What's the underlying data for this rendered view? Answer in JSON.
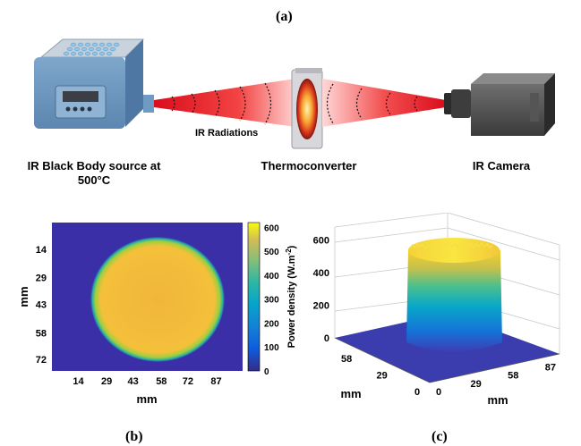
{
  "panel_a": {
    "label": "(a)",
    "source_caption_line1": "IR Black Body source at",
    "source_caption_line2": "500°C",
    "beam_label": "IR Radiations",
    "converter_caption": "Thermoconverter",
    "camera_caption": "IR Camera",
    "source_display_color": "#3b3f45",
    "beam_color": "#e8101a"
  },
  "panel_b": {
    "label": "(b)",
    "xlabel": "mm",
    "ylabel": "mm",
    "x_ticks": [
      "14",
      "29",
      "43",
      "58",
      "72",
      "87"
    ],
    "y_ticks": [
      "14",
      "29",
      "43",
      "58",
      "72"
    ],
    "colorbar_label": "Power density (W.m",
    "colorbar_exp": "-2",
    "colorbar_label_end": ")",
    "colorbar_ticks": [
      "0",
      "100",
      "200",
      "300",
      "400",
      "500",
      "600"
    ],
    "background_color": "#3b2fa8",
    "disk_color": "#f2b93b"
  },
  "panel_c": {
    "label": "(c)",
    "z_ticks": [
      "0",
      "200",
      "400",
      "600"
    ],
    "left_axis_ticks": [
      "0",
      "29",
      "58"
    ],
    "right_axis_ticks": [
      "0",
      "29",
      "58",
      "87"
    ],
    "left_axis_label": "mm",
    "right_axis_label": "mm"
  },
  "chart_data": [
    {
      "type": "heatmap",
      "title": "",
      "xlabel": "mm",
      "ylabel": "mm",
      "x_ticks": [
        14,
        29,
        43,
        58,
        72,
        87
      ],
      "y_ticks": [
        14,
        29,
        43,
        58,
        72
      ],
      "colorbar": {
        "label": "Power density (W.m-2)",
        "range": [
          0,
          620
        ],
        "ticks": [
          0,
          100,
          200,
          300,
          400,
          500,
          600
        ],
        "colormap": "parula"
      },
      "description_values": {
        "disk_level": 520,
        "background_level": 0
      }
    },
    {
      "type": "surface",
      "zlabel": "",
      "z_range": [
        0,
        600
      ],
      "z_ticks": [
        0,
        200,
        400,
        600
      ],
      "x_ticks": [
        0,
        29,
        58,
        87
      ],
      "y_ticks": [
        0,
        29,
        58
      ],
      "xlabel": "mm",
      "ylabel": "mm",
      "plateau_level": 560
    }
  ]
}
